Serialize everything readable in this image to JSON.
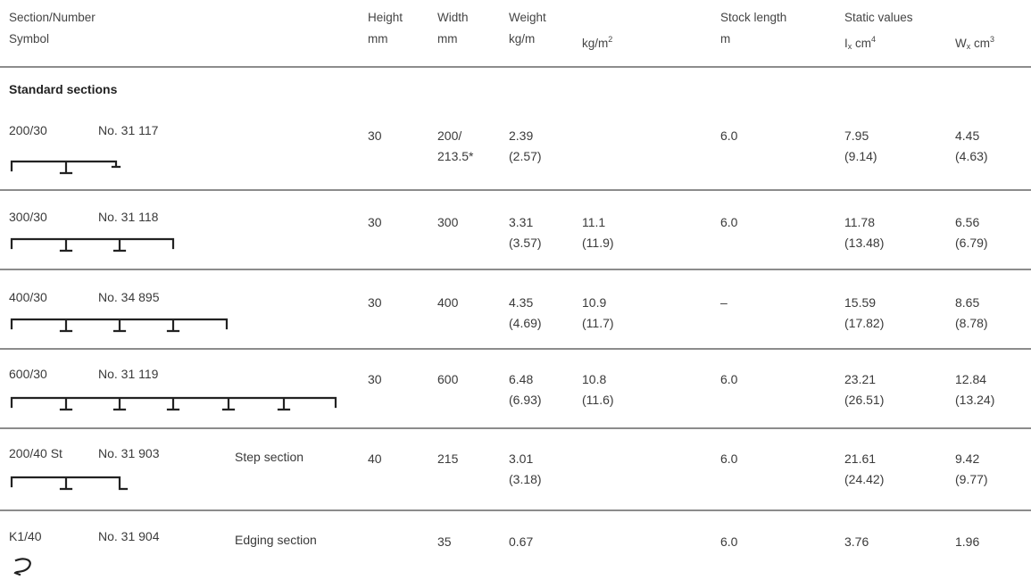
{
  "header": {
    "section_line1": "Section/Number",
    "section_line2": "Symbol",
    "height_line1": "Height",
    "height_line2": "mm",
    "width_line1": "Width",
    "width_line2": "mm",
    "weight_line1": "Weight",
    "weight_line2": "kg/m",
    "weight_m2_base": "kg/m",
    "weight_m2_sup": "2",
    "stock_line1": "Stock length",
    "stock_line2": "m",
    "static_line1": "Static values",
    "ix_base": "I",
    "ix_sub": "x",
    "ix_unit": " cm",
    "ix_sup": "4",
    "wx_base": "W",
    "wx_sub": "x",
    "wx_unit": " cm",
    "wx_sup": "3"
  },
  "section_title": "Standard sections",
  "rows": [
    {
      "section": "200/30",
      "number": "No. 31 117",
      "desc": "",
      "height": "30",
      "width": "200/",
      "width2": "213.5*",
      "kgm": "2.39",
      "kgm2": "(2.57)",
      "kgm_sq": "",
      "kgm_sq2": "",
      "stock": "6.0",
      "ix": "7.95",
      "ix2": "(9.14)",
      "wx": "4.45",
      "wx2": "(4.63)",
      "symbol": "200-profile-symbol"
    },
    {
      "section": "300/30",
      "number": "No. 31 118",
      "desc": "",
      "height": "30",
      "width": "300",
      "width2": "",
      "kgm": "3.31",
      "kgm2": "(3.57)",
      "kgm_sq": "11.1",
      "kgm_sq2": "(11.9)",
      "stock": "6.0",
      "ix": "11.78",
      "ix2": "(13.48)",
      "wx": "6.56",
      "wx2": "(6.79)",
      "symbol": "300-profile-symbol"
    },
    {
      "section": "400/30",
      "number": "No. 34 895",
      "desc": "",
      "height": "30",
      "width": "400",
      "width2": "",
      "kgm": "4.35",
      "kgm2": "(4.69)",
      "kgm_sq": "10.9",
      "kgm_sq2": "(11.7)",
      "stock": "–",
      "ix": "15.59",
      "ix2": "(17.82)",
      "wx": "8.65",
      "wx2": "(8.78)",
      "symbol": "400-profile-symbol"
    },
    {
      "section": "600/30",
      "number": "No. 31 119",
      "desc": "",
      "height": "30",
      "width": "600",
      "width2": "",
      "kgm": "6.48",
      "kgm2": "(6.93)",
      "kgm_sq": "10.8",
      "kgm_sq2": "(11.6)",
      "stock": "6.0",
      "ix": "23.21",
      "ix2": "(26.51)",
      "wx": "12.84",
      "wx2": "(13.24)",
      "symbol": "600-profile-symbol"
    },
    {
      "section": "200/40 St",
      "number": "No. 31 903",
      "desc": "Step section",
      "height": "40",
      "width": "215",
      "width2": "",
      "kgm": "3.01",
      "kgm2": "(3.18)",
      "kgm_sq": "",
      "kgm_sq2": "",
      "stock": "6.0",
      "ix": "21.61",
      "ix2": "(24.42)",
      "wx": "9.42",
      "wx2": "(9.77)",
      "symbol": "step-section-symbol"
    },
    {
      "section": "K1/40",
      "number": "No. 31 904",
      "desc": "Edging section",
      "height": "",
      "width": "35",
      "width2": "",
      "kgm": "0.67",
      "kgm2": "",
      "kgm_sq": "",
      "kgm_sq2": "",
      "stock": "6.0",
      "ix": "3.76",
      "ix2": "",
      "wx": "1.96",
      "wx2": "",
      "symbol": "edging-section-symbol"
    }
  ]
}
